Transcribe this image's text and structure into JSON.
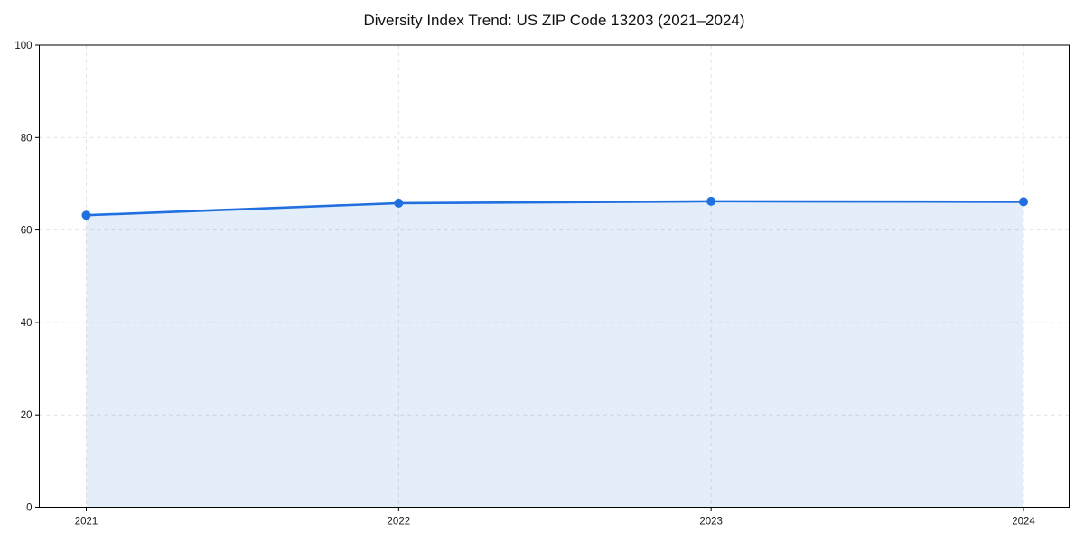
{
  "title": "Diversity Index Trend: US ZIP Code 13203 (2021–2024)",
  "chart_data": {
    "type": "line",
    "title": "Diversity Index Trend: US ZIP Code 13203 (2021–2024)",
    "categories": [
      "2021",
      "2022",
      "2023",
      "2024"
    ],
    "series": [
      {
        "name": "Diversity Index",
        "values": [
          63.2,
          65.8,
          66.2,
          66.1
        ]
      }
    ],
    "xlabel": "",
    "ylabel": "",
    "ylim": [
      0,
      100
    ],
    "yticks": [
      0,
      20,
      40,
      60,
      80,
      100
    ],
    "grid": true,
    "grid_style": "dashed",
    "grid_color": "#e2e2e2",
    "legend_position": "none",
    "line_color": "#2170e0",
    "marker": "circle",
    "marker_radius": 5,
    "line_width": 2.6,
    "area_fill": true,
    "area_fill_color": "#2170e0",
    "area_fill_opacity": 0.12,
    "axis_color": "#000000"
  }
}
